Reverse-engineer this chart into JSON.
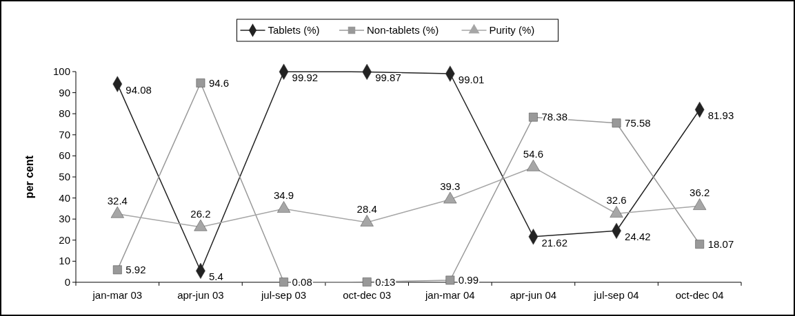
{
  "chart_data": {
    "type": "line",
    "ylabel": "per cent",
    "categories": [
      "jan-mar 03",
      "apr-jun 03",
      "jul-sep 03",
      "oct-dec 03",
      "jan-mar 04",
      "apr-jun 04",
      "jul-sep 04",
      "oct-dec 04"
    ],
    "series": [
      {
        "name": "Tablets (%)",
        "color": "#222222",
        "marker": "diamond",
        "values": [
          94.08,
          5.4,
          99.92,
          99.87,
          99.01,
          21.62,
          24.42,
          81.93
        ]
      },
      {
        "name": "Non-tablets (%)",
        "color": "#999999",
        "marker": "square",
        "values": [
          5.92,
          94.6,
          0.08,
          0.13,
          0.99,
          78.38,
          75.58,
          18.07
        ]
      },
      {
        "name": "Purity (%)",
        "color": "#a6a6a6",
        "marker": "triangle",
        "values": [
          32.4,
          26.2,
          34.9,
          28.4,
          39.3,
          54.6,
          32.6,
          36.2
        ]
      }
    ],
    "ylim": [
      0,
      100
    ],
    "yticks": [
      0,
      10,
      20,
      30,
      40,
      50,
      60,
      70,
      80,
      90,
      100
    ],
    "grid": false,
    "legend": "top",
    "data_labels": true
  }
}
